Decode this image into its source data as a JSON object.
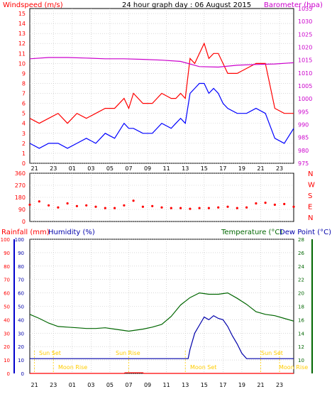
{
  "header": {
    "left_label": "Windspeed (m/s)",
    "title": "24 hour graph day : 06 August 2015",
    "right_label": "Barometer (hpa)"
  },
  "x_ticks": [
    "21",
    "23",
    "01",
    "03",
    "05",
    "07",
    "09",
    "11",
    "13",
    "15",
    "17",
    "19",
    "21",
    "23"
  ],
  "colors": {
    "wind": "#ff0000",
    "gust": "#ff0000",
    "windspeed_avg": "#0000ff",
    "barometer": "#cc00cc",
    "direction": "#ff0000",
    "rainfall": "#ff0000",
    "humidity": "#0000aa",
    "temperature": "#006600",
    "dewpoint": "#0000aa",
    "sun_moon": "#ffcc00",
    "grid": "#c0c0c0",
    "frame": "#000000"
  },
  "chart_data": [
    {
      "type": "line",
      "panel": "wind_barometer",
      "y_left": {
        "label": "Windspeed (m/s)",
        "ticks": [
          0,
          1,
          2,
          3,
          4,
          5,
          6,
          7,
          8,
          9,
          10,
          11,
          12,
          13,
          14,
          15
        ],
        "range": [
          0,
          15.5
        ]
      },
      "y_right": {
        "label": "Barometer (hpa)",
        "ticks": [
          975,
          980,
          985,
          990,
          995,
          1000,
          1005,
          1010,
          1015,
          1020,
          1025,
          1030,
          1035
        ],
        "range": [
          975,
          1035
        ]
      },
      "x_hours": [
        0,
        2,
        4,
        6,
        8,
        10,
        12,
        14,
        16,
        18,
        20,
        22,
        24,
        26,
        28
      ],
      "series": [
        {
          "key": "gust",
          "color": "#ff0000",
          "x": [
            0,
            1,
            2,
            3,
            4,
            5,
            6,
            7,
            8,
            9,
            10,
            10.5,
            11,
            12,
            13,
            14,
            15,
            15.5,
            16,
            16.5,
            17,
            17.5,
            18,
            18.5,
            19,
            19.5,
            20,
            20.5,
            21,
            22,
            23,
            24,
            25,
            26,
            27,
            28
          ],
          "y": [
            4.5,
            4,
            4.5,
            5,
            4,
            5,
            4.5,
            5,
            5.5,
            5.5,
            6.5,
            5.5,
            7,
            6,
            6,
            7,
            6.5,
            6.5,
            7,
            6.5,
            10.5,
            10,
            11,
            12,
            10.5,
            11,
            11,
            10,
            9,
            9,
            9.5,
            10,
            10,
            5.5,
            5,
            5
          ]
        },
        {
          "key": "windspeed",
          "color": "#0000ff",
          "x": [
            0,
            1,
            2,
            3,
            4,
            5,
            6,
            7,
            8,
            9,
            10,
            10.5,
            11,
            12,
            13,
            14,
            15,
            15.5,
            16,
            16.5,
            17,
            17.5,
            18,
            18.5,
            19,
            19.5,
            20,
            20.5,
            21,
            22,
            23,
            24,
            25,
            26,
            27,
            28
          ],
          "y": [
            2,
            1.5,
            2,
            2,
            1.5,
            2,
            2.5,
            2,
            3,
            2.5,
            4,
            3.5,
            3.5,
            3,
            3,
            4,
            3.5,
            4,
            4.5,
            4,
            7,
            7.5,
            8,
            8,
            7,
            7.5,
            7,
            6,
            5.5,
            5,
            5,
            5.5,
            5,
            2.5,
            2,
            3.5
          ]
        },
        {
          "key": "barometer",
          "color": "#cc00cc",
          "x": [
            0,
            2,
            4,
            6,
            8,
            10,
            12,
            14,
            16,
            18,
            20,
            22,
            24,
            26,
            28
          ],
          "y": [
            1015.5,
            1016,
            1016,
            1015.8,
            1015.5,
            1015.5,
            1015.3,
            1015,
            1014.5,
            1012.5,
            1012.3,
            1013,
            1013.3,
            1013.5,
            1014
          ]
        }
      ]
    },
    {
      "type": "scatter",
      "panel": "wind_direction",
      "y_left_ticks": [
        0,
        90,
        180,
        270,
        360
      ],
      "y_right_labels": [
        "N",
        "W",
        "S",
        "E",
        "N"
      ],
      "range": [
        0,
        360
      ],
      "x": [
        0,
        1,
        2,
        3,
        4,
        5,
        6,
        7,
        8,
        9,
        10,
        11,
        12,
        13,
        14,
        15,
        16,
        17,
        18,
        19,
        20,
        21,
        22,
        23,
        24,
        25,
        26,
        27,
        28
      ],
      "y": [
        125,
        150,
        120,
        105,
        135,
        115,
        120,
        110,
        100,
        100,
        120,
        155,
        110,
        115,
        105,
        100,
        100,
        95,
        100,
        100,
        105,
        110,
        100,
        105,
        135,
        140,
        125,
        130,
        110
      ]
    },
    {
      "type": "line",
      "panel": "rain_humidity_temperature",
      "labels": [
        "Rainfall (mm)",
        "Humidity (%)",
        "Temperature (°C)",
        "Dew Point (°C)"
      ],
      "y_left_ticks": [
        0,
        10,
        20,
        30,
        40,
        50,
        60,
        70,
        80,
        90,
        100
      ],
      "y_right_ticks": [
        10,
        12,
        14,
        16,
        18,
        20,
        22,
        24,
        26,
        28
      ],
      "y_right_range": [
        8,
        28
      ],
      "annotations": [
        "Sun Set",
        "Sun Rise",
        "Moon Rise",
        "Moon Set",
        "Sun Set",
        "Moon Rise"
      ],
      "series": [
        {
          "key": "temperature",
          "color": "#006600",
          "x": [
            0,
            1,
            2,
            3,
            4,
            5,
            6,
            7,
            8,
            9,
            10,
            10.5,
            11,
            12,
            13,
            14,
            15,
            16,
            17,
            18,
            19,
            20,
            21,
            22,
            23,
            24,
            25,
            26,
            27,
            28
          ],
          "y": [
            16.8,
            16.2,
            15.5,
            15,
            14.9,
            14.8,
            14.7,
            14.7,
            14.8,
            14.6,
            14.4,
            14.3,
            14.4,
            14.6,
            14.9,
            15.3,
            16.5,
            18.2,
            19.3,
            20,
            19.8,
            19.8,
            20,
            19.2,
            18.3,
            17.2,
            16.8,
            16.6,
            16.2,
            15.8
          ]
        },
        {
          "key": "humidity",
          "color": "#0000aa",
          "x": [
            0,
            16.8,
            17,
            17.5,
            18,
            18.5,
            19,
            19.5,
            20,
            20.5,
            21,
            21.5,
            22,
            22.5,
            23,
            28
          ],
          "y": [
            11,
            11,
            18,
            30,
            36,
            42,
            40,
            43,
            41,
            40,
            35,
            28,
            22,
            15,
            11,
            11
          ]
        },
        {
          "key": "rainfall",
          "color": "#ff0000",
          "x": [
            0,
            10,
            10.1,
            12,
            12.1,
            28
          ],
          "y": [
            0,
            0,
            0.5,
            0.5,
            0,
            0
          ]
        }
      ]
    }
  ]
}
